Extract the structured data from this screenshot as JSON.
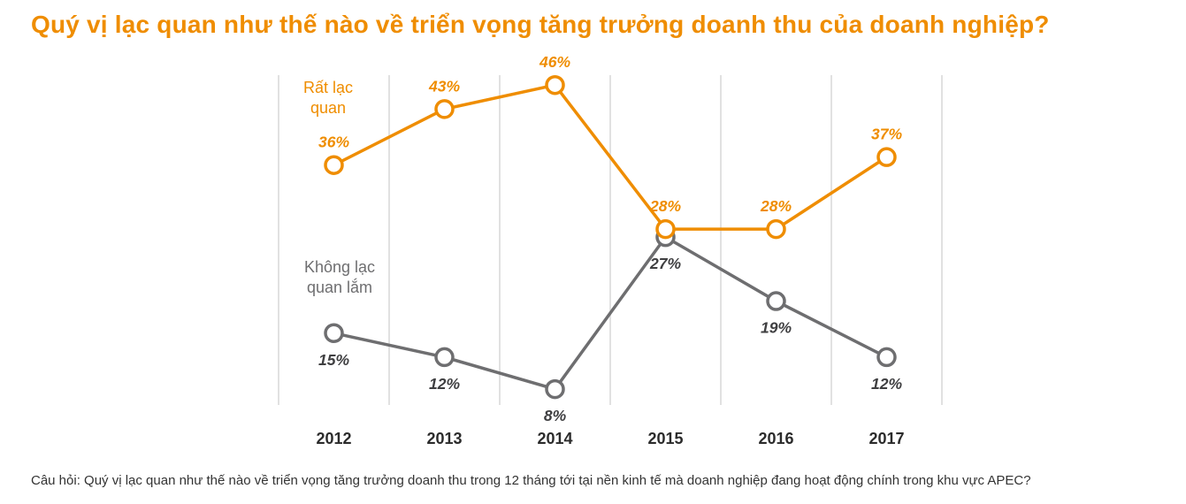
{
  "title": "Quý vị lạc quan như thế nào về triển vọng tăng trưởng doanh thu của doanh nghiệp?",
  "footnote": "Câu hỏi: Quý vị lạc quan như thế nào về triển vọng tăng trưởng doanh thu trong 12 tháng tới tại nền kinh tế mà doanh nghiệp đang hoạt động chính trong khu vực APEC?",
  "chart_data": {
    "type": "line",
    "title": "Quý vị lạc quan như thế nào về triển vọng tăng trưởng doanh thu của doanh nghiệp?",
    "categories": [
      "2012",
      "2013",
      "2014",
      "2015",
      "2016",
      "2017"
    ],
    "series": [
      {
        "name": "Rất lạc quan",
        "label_lines": [
          "Rất lạc",
          "quan"
        ],
        "color": "#EF8D00",
        "value_label_color": "#EF8D00",
        "label_position": "above",
        "values": [
          36,
          43,
          46,
          28,
          28,
          37
        ],
        "value_labels": [
          "36%",
          "43%",
          "46%",
          "28%",
          "28%",
          "37%"
        ]
      },
      {
        "name": "Không lạc quan lắm",
        "label_lines": [
          "Không lạc",
          "quan lắm"
        ],
        "color": "#6E6E70",
        "value_label_color": "#3F3F41",
        "label_position": "below",
        "values": [
          15,
          12,
          8,
          27,
          19,
          12
        ],
        "value_labels": [
          "15%",
          "12%",
          "8%",
          "27%",
          "19%",
          "12%"
        ]
      }
    ],
    "xlabel": "",
    "ylabel": "",
    "ylim": [
      0,
      50
    ],
    "grid": "vertical-only",
    "legend_position": "inline-near-series",
    "point_style": "open-circle"
  },
  "colors": {
    "title": "#EF8D00",
    "orange_series": "#EF8D00",
    "gray_series": "#6E6E70",
    "gridline": "#E1E1E1",
    "axis_text": "#2B2B2B",
    "gray_value_label": "#3F3F41",
    "footnote_text": "#333333",
    "background": "#FFFFFF",
    "marker_fill": "#FFFFFF"
  }
}
